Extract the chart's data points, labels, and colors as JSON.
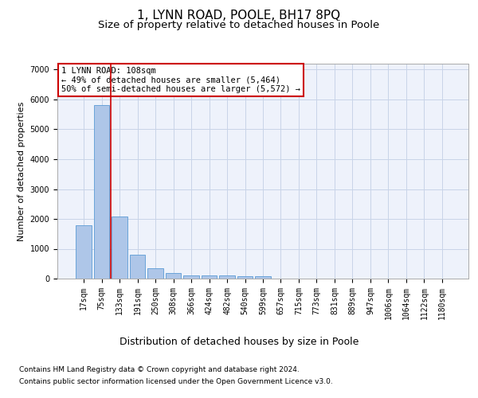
{
  "title1": "1, LYNN ROAD, POOLE, BH17 8PQ",
  "title2": "Size of property relative to detached houses in Poole",
  "xlabel": "Distribution of detached houses by size in Poole",
  "ylabel": "Number of detached properties",
  "bar_labels": [
    "17sqm",
    "75sqm",
    "133sqm",
    "191sqm",
    "250sqm",
    "308sqm",
    "366sqm",
    "424sqm",
    "482sqm",
    "540sqm",
    "599sqm",
    "657sqm",
    "715sqm",
    "773sqm",
    "831sqm",
    "889sqm",
    "947sqm",
    "1006sqm",
    "1064sqm",
    "1122sqm",
    "1180sqm"
  ],
  "bar_values": [
    1780,
    5800,
    2080,
    800,
    340,
    200,
    120,
    105,
    95,
    80,
    70,
    0,
    0,
    0,
    0,
    0,
    0,
    0,
    0,
    0,
    0
  ],
  "bar_color": "#aec6e8",
  "bar_edgecolor": "#5b9bd5",
  "vline_x": 1.5,
  "vline_color": "#cc0000",
  "annotation_text": "1 LYNN ROAD: 108sqm\n← 49% of detached houses are smaller (5,464)\n50% of semi-detached houses are larger (5,572) →",
  "annotation_box_color": "#ffffff",
  "annotation_box_edgecolor": "#cc0000",
  "ylim": [
    0,
    7200
  ],
  "yticks": [
    0,
    1000,
    2000,
    3000,
    4000,
    5000,
    6000,
    7000
  ],
  "footer1": "Contains HM Land Registry data © Crown copyright and database right 2024.",
  "footer2": "Contains public sector information licensed under the Open Government Licence v3.0.",
  "plot_background": "#eef2fb",
  "grid_color": "#c8d4e8",
  "title1_fontsize": 11,
  "title2_fontsize": 9.5,
  "xlabel_fontsize": 9,
  "ylabel_fontsize": 8,
  "footer_fontsize": 6.5,
  "tick_fontsize": 7,
  "annot_fontsize": 7.5
}
